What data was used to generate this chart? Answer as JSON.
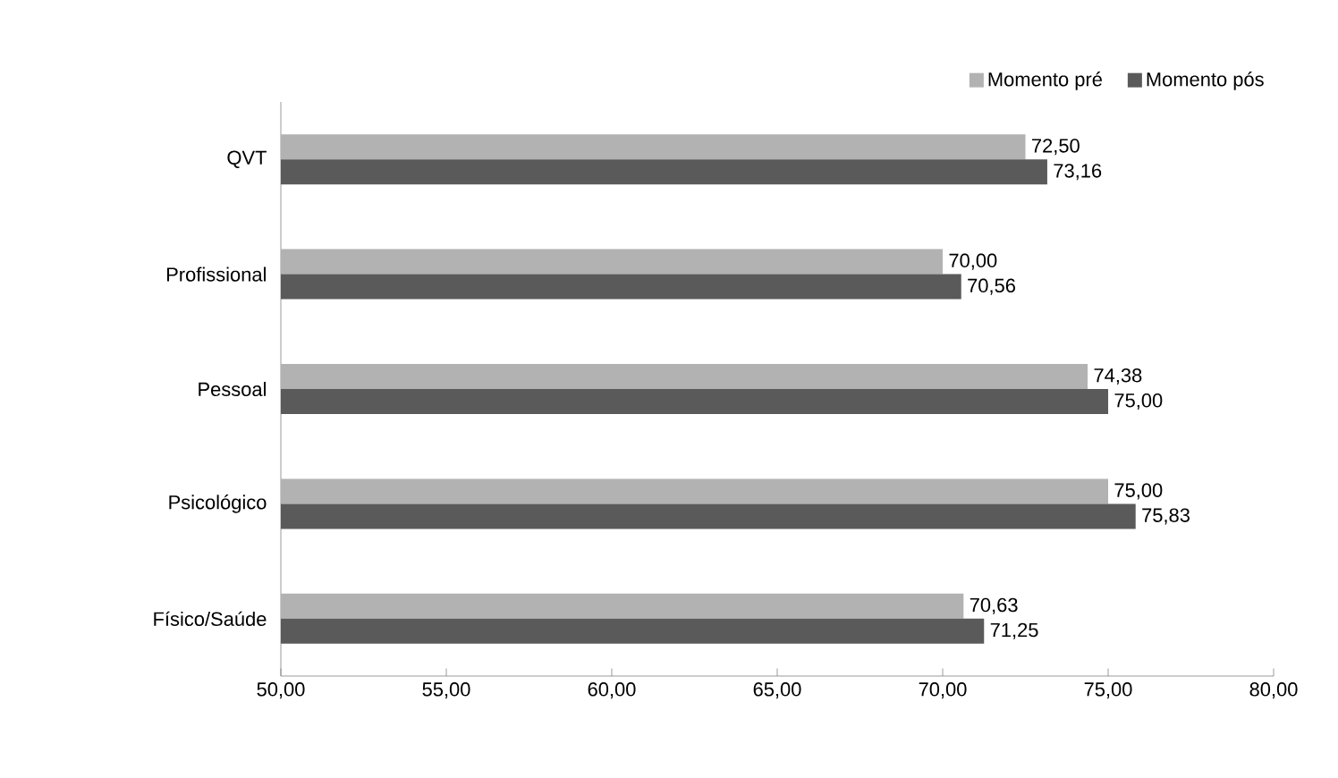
{
  "chart_data": {
    "type": "bar",
    "orientation": "horizontal",
    "categories": [
      "QVT",
      "Profissional",
      "Pessoal",
      "Psicológico",
      "Físico/Saúde"
    ],
    "series": [
      {
        "name": "Momento pré",
        "color": "#b2b2b2",
        "values": [
          72.5,
          70.0,
          74.38,
          75.0,
          70.63
        ],
        "value_labels": [
          "72,50",
          "70,00",
          "74,38",
          "75,00",
          "70,63"
        ]
      },
      {
        "name": "Momento pós",
        "color": "#5a5a5a",
        "values": [
          73.16,
          70.56,
          75.0,
          75.83,
          71.25
        ],
        "value_labels": [
          "73,16",
          "70,56",
          "75,00",
          "75,83",
          "71,25"
        ]
      }
    ],
    "xlim": [
      50,
      80
    ],
    "xticks": [
      {
        "value": 50,
        "label": "50,00"
      },
      {
        "value": 55,
        "label": "55,00"
      },
      {
        "value": 60,
        "label": "60,00"
      },
      {
        "value": 65,
        "label": "65,00"
      },
      {
        "value": 70,
        "label": "70,00"
      },
      {
        "value": 75,
        "label": "75,00"
      },
      {
        "value": 80,
        "label": "80,00"
      }
    ],
    "grid": false,
    "legend": "top right"
  }
}
